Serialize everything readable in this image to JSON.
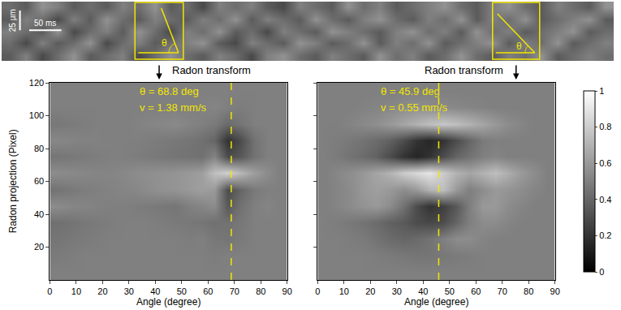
{
  "chart_data": [
    {
      "type": "heatmap",
      "color": "gray",
      "tick_labels": false,
      "xlim": [
        0,
        950
      ],
      "ylim": [
        0,
        75
      ],
      "zlim": [
        0.2,
        0.9
      ],
      "x": [
        12.5,
        37.5,
        62.5,
        87.5,
        112.5,
        137.5,
        162.5,
        187.5,
        212.5,
        237.5,
        262.5,
        287.5,
        312.5,
        337.5,
        362.5,
        387.5,
        412.5,
        437.5,
        462.5,
        487.5,
        512.5,
        537.5,
        562.5,
        587.5,
        612.5,
        637.5,
        662.5,
        687.5,
        712.5,
        737.5,
        762.5,
        787.5,
        812.5,
        837.5,
        862.5,
        887.5,
        912.5,
        937.5
      ],
      "y": [
        7.5,
        22.5,
        37.5,
        52.5,
        67.5
      ],
      "z": [
        [
          0.45,
          0.55,
          0.4,
          0.5,
          0.6,
          0.45,
          0.5,
          0.55,
          0.4,
          0.5,
          0.6,
          0.5,
          0.45,
          0.55,
          0.5,
          0.4,
          0.55,
          0.6,
          0.5,
          0.45,
          0.55,
          0.5,
          0.45,
          0.6,
          0.5,
          0.55,
          0.45,
          0.5,
          0.6,
          0.5,
          0.45,
          0.55,
          0.5,
          0.6,
          0.45,
          0.5,
          0.55,
          0.5
        ],
        [
          0.5,
          0.4,
          0.55,
          0.45,
          0.5,
          0.6,
          0.4,
          0.5,
          0.55,
          0.45,
          0.5,
          0.55,
          0.6,
          0.45,
          0.4,
          0.55,
          0.5,
          0.45,
          0.6,
          0.55,
          0.45,
          0.5,
          0.6,
          0.45,
          0.55,
          0.5,
          0.6,
          0.45,
          0.5,
          0.55,
          0.6,
          0.45,
          0.55,
          0.5,
          0.6,
          0.45,
          0.5,
          0.55
        ],
        [
          0.55,
          0.5,
          0.45,
          0.6,
          0.4,
          0.5,
          0.55,
          0.45,
          0.6,
          0.5,
          0.4,
          0.55,
          0.5,
          0.6,
          0.45,
          0.5,
          0.4,
          0.55,
          0.5,
          0.45,
          0.6,
          0.55,
          0.5,
          0.45,
          0.55,
          0.6,
          0.5,
          0.55,
          0.45,
          0.6,
          0.5,
          0.55,
          0.45,
          0.5,
          0.55,
          0.6,
          0.45,
          0.5
        ],
        [
          0.45,
          0.55,
          0.5,
          0.4,
          0.55,
          0.45,
          0.6,
          0.5,
          0.45,
          0.55,
          0.5,
          0.45,
          0.55,
          0.5,
          0.6,
          0.45,
          0.55,
          0.5,
          0.45,
          0.6,
          0.5,
          0.45,
          0.55,
          0.6,
          0.5,
          0.45,
          0.55,
          0.5,
          0.6,
          0.45,
          0.55,
          0.5,
          0.6,
          0.45,
          0.5,
          0.55,
          0.6,
          0.45
        ],
        [
          0.5,
          0.45,
          0.6,
          0.55,
          0.45,
          0.5,
          0.45,
          0.55,
          0.5,
          0.6,
          0.45,
          0.5,
          0.4,
          0.55,
          0.5,
          0.55,
          0.45,
          0.4,
          0.55,
          0.5,
          0.45,
          0.6,
          0.5,
          0.55,
          0.45,
          0.5,
          0.55,
          0.6,
          0.5,
          0.45,
          0.55,
          0.6,
          0.5,
          0.45,
          0.55,
          0.5,
          0.45,
          0.6
        ]
      ],
      "scale_bars": [
        {
          "axis": "y",
          "value": 25,
          "label": "25 μm"
        },
        {
          "axis": "x",
          "value": 50,
          "label": "50 ms"
        }
      ],
      "windows": [
        {
          "x0": 207,
          "x1": 282,
          "angle_label": "θ",
          "label": "Radon transform"
        },
        {
          "x0": 762,
          "x1": 835,
          "angle_label": "θ",
          "label": "Radon transform"
        }
      ]
    },
    {
      "type": "heatmap",
      "color": "gray",
      "xlim": [
        0,
        90
      ],
      "ylim": [
        0,
        120
      ],
      "zlim": [
        0,
        1
      ],
      "xticks": [
        0,
        10,
        20,
        30,
        40,
        50,
        60,
        70,
        80,
        90
      ],
      "yticks": [
        20,
        40,
        60,
        80,
        100,
        120
      ],
      "x_label": "Angle (degree)",
      "y_label": "Radon projection (Pixel)",
      "angle_line": 68.8,
      "annotations": [
        "θ = 68.8 deg",
        "v = 1.38 mm/s"
      ],
      "x": [
        2.5,
        7.5,
        12.5,
        17.5,
        22.5,
        27.5,
        32.5,
        37.5,
        42.5,
        47.5,
        52.5,
        57.5,
        62.5,
        67.5,
        72.5,
        77.5,
        82.5,
        87.5
      ],
      "y": [
        5,
        15,
        25,
        35,
        45,
        55,
        65,
        75,
        85,
        95,
        105,
        115
      ],
      "z": [
        [
          0.5,
          0.5,
          0.5,
          0.5,
          0.5,
          0.5,
          0.5,
          0.5,
          0.5,
          0.5,
          0.5,
          0.5,
          0.5,
          0.5,
          0.5,
          0.5,
          0.5,
          0.5
        ],
        [
          0.48,
          0.49,
          0.5,
          0.5,
          0.5,
          0.5,
          0.5,
          0.5,
          0.5,
          0.5,
          0.5,
          0.5,
          0.49,
          0.5,
          0.5,
          0.5,
          0.5,
          0.5
        ],
        [
          0.46,
          0.47,
          0.48,
          0.49,
          0.5,
          0.5,
          0.5,
          0.5,
          0.5,
          0.5,
          0.49,
          0.5,
          0.47,
          0.46,
          0.48,
          0.5,
          0.5,
          0.5
        ],
        [
          0.44,
          0.45,
          0.47,
          0.48,
          0.49,
          0.5,
          0.5,
          0.5,
          0.49,
          0.48,
          0.47,
          0.46,
          0.44,
          0.45,
          0.47,
          0.5,
          0.5,
          0.5
        ],
        [
          0.55,
          0.53,
          0.52,
          0.51,
          0.5,
          0.5,
          0.49,
          0.48,
          0.47,
          0.46,
          0.5,
          0.52,
          0.55,
          0.35,
          0.45,
          0.5,
          0.52,
          0.5
        ],
        [
          0.45,
          0.47,
          0.49,
          0.5,
          0.51,
          0.52,
          0.53,
          0.55,
          0.57,
          0.58,
          0.6,
          0.62,
          0.6,
          0.3,
          0.4,
          0.48,
          0.5,
          0.5
        ],
        [
          0.55,
          0.54,
          0.53,
          0.52,
          0.52,
          0.53,
          0.55,
          0.56,
          0.57,
          0.58,
          0.6,
          0.62,
          0.75,
          0.82,
          0.72,
          0.62,
          0.55,
          0.5
        ],
        [
          0.46,
          0.47,
          0.48,
          0.49,
          0.5,
          0.5,
          0.49,
          0.48,
          0.47,
          0.46,
          0.45,
          0.44,
          0.52,
          0.3,
          0.35,
          0.45,
          0.5,
          0.5
        ],
        [
          0.53,
          0.52,
          0.51,
          0.51,
          0.5,
          0.5,
          0.5,
          0.49,
          0.48,
          0.47,
          0.46,
          0.44,
          0.4,
          0.2,
          0.3,
          0.45,
          0.5,
          0.5
        ],
        [
          0.47,
          0.48,
          0.49,
          0.5,
          0.5,
          0.5,
          0.51,
          0.52,
          0.53,
          0.54,
          0.52,
          0.5,
          0.48,
          0.42,
          0.46,
          0.5,
          0.5,
          0.5
        ],
        [
          0.5,
          0.5,
          0.5,
          0.5,
          0.5,
          0.5,
          0.5,
          0.5,
          0.5,
          0.5,
          0.5,
          0.51,
          0.52,
          0.5,
          0.49,
          0.5,
          0.5,
          0.5
        ],
        [
          0.5,
          0.5,
          0.5,
          0.5,
          0.5,
          0.5,
          0.5,
          0.5,
          0.5,
          0.5,
          0.5,
          0.5,
          0.5,
          0.5,
          0.5,
          0.5,
          0.5,
          0.5
        ]
      ]
    },
    {
      "type": "heatmap",
      "color": "gray",
      "tick_labels": "x",
      "xlim": [
        0,
        90
      ],
      "ylim": [
        0,
        120
      ],
      "zlim": [
        0,
        1
      ],
      "xticks": [
        0,
        10,
        20,
        30,
        40,
        50,
        60,
        70,
        80,
        90
      ],
      "yticks": [
        20,
        40,
        60,
        80,
        100,
        120
      ],
      "zticks": [
        0,
        0.2,
        0.4,
        0.6,
        0.8,
        1
      ],
      "x_label": "Angle (degree)",
      "angle_line": 45.9,
      "annotations": [
        "θ = 45.9 deg",
        "v = 0.55 mm/s"
      ],
      "x": [
        2.5,
        7.5,
        12.5,
        17.5,
        22.5,
        27.5,
        32.5,
        37.5,
        42.5,
        47.5,
        52.5,
        57.5,
        62.5,
        67.5,
        72.5,
        77.5,
        82.5,
        87.5
      ],
      "y": [
        5,
        15,
        25,
        35,
        45,
        55,
        65,
        75,
        85,
        95,
        105,
        115
      ],
      "z": [
        [
          0.5,
          0.5,
          0.5,
          0.5,
          0.5,
          0.5,
          0.5,
          0.5,
          0.5,
          0.5,
          0.5,
          0.5,
          0.5,
          0.5,
          0.5,
          0.5,
          0.5,
          0.5
        ],
        [
          0.5,
          0.5,
          0.5,
          0.5,
          0.49,
          0.48,
          0.47,
          0.46,
          0.46,
          0.47,
          0.48,
          0.49,
          0.5,
          0.5,
          0.5,
          0.5,
          0.5,
          0.5
        ],
        [
          0.5,
          0.5,
          0.49,
          0.48,
          0.45,
          0.42,
          0.4,
          0.42,
          0.45,
          0.5,
          0.55,
          0.55,
          0.52,
          0.5,
          0.5,
          0.5,
          0.5,
          0.5
        ],
        [
          0.5,
          0.49,
          0.47,
          0.45,
          0.42,
          0.38,
          0.35,
          0.3,
          0.28,
          0.3,
          0.4,
          0.5,
          0.55,
          0.55,
          0.52,
          0.5,
          0.5,
          0.5
        ],
        [
          0.5,
          0.52,
          0.55,
          0.58,
          0.6,
          0.55,
          0.45,
          0.3,
          0.2,
          0.25,
          0.35,
          0.5,
          0.6,
          0.6,
          0.55,
          0.52,
          0.5,
          0.5
        ],
        [
          0.5,
          0.52,
          0.55,
          0.6,
          0.62,
          0.6,
          0.55,
          0.6,
          0.7,
          0.75,
          0.6,
          0.5,
          0.55,
          0.6,
          0.58,
          0.55,
          0.52,
          0.5
        ],
        [
          0.5,
          0.53,
          0.56,
          0.6,
          0.65,
          0.7,
          0.8,
          0.85,
          0.9,
          0.8,
          0.7,
          0.65,
          0.7,
          0.75,
          0.68,
          0.6,
          0.55,
          0.5
        ],
        [
          0.5,
          0.48,
          0.45,
          0.42,
          0.38,
          0.3,
          0.2,
          0.15,
          0.2,
          0.3,
          0.4,
          0.45,
          0.5,
          0.52,
          0.5,
          0.5,
          0.5,
          0.5
        ],
        [
          0.5,
          0.49,
          0.47,
          0.45,
          0.42,
          0.38,
          0.3,
          0.2,
          0.15,
          0.2,
          0.3,
          0.4,
          0.48,
          0.5,
          0.5,
          0.5,
          0.5,
          0.5
        ],
        [
          0.5,
          0.5,
          0.52,
          0.54,
          0.56,
          0.6,
          0.65,
          0.7,
          0.75,
          0.78,
          0.75,
          0.7,
          0.65,
          0.6,
          0.55,
          0.52,
          0.5,
          0.5
        ],
        [
          0.5,
          0.5,
          0.5,
          0.51,
          0.52,
          0.53,
          0.55,
          0.56,
          0.55,
          0.54,
          0.53,
          0.52,
          0.51,
          0.5,
          0.5,
          0.5,
          0.5,
          0.5
        ],
        [
          0.5,
          0.5,
          0.5,
          0.5,
          0.5,
          0.5,
          0.5,
          0.5,
          0.5,
          0.5,
          0.5,
          0.5,
          0.5,
          0.5,
          0.5,
          0.5,
          0.5,
          0.5
        ]
      ]
    }
  ]
}
